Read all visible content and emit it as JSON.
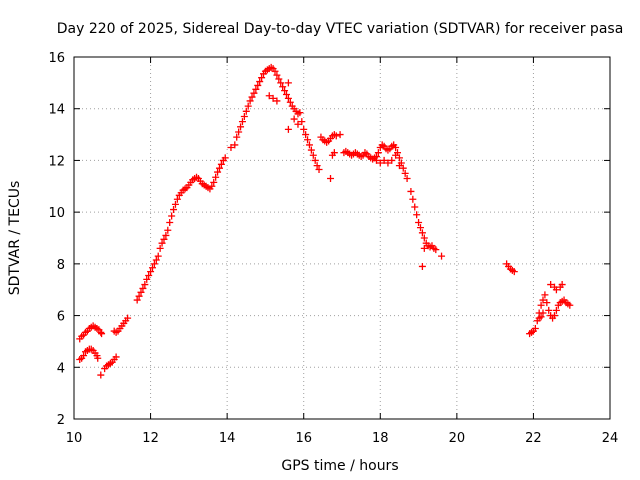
{
  "chart_data": {
    "type": "scatter",
    "title": "Day 220 of 2025, Sidereal Day-to-day VTEC variation (SDTVAR) for receiver pasa",
    "xlabel": "GPS time / hours",
    "ylabel": "SDTVAR / TECUs",
    "xlim": [
      10,
      24
    ],
    "ylim": [
      2,
      16
    ],
    "xticks": [
      10,
      12,
      14,
      16,
      18,
      20,
      22,
      24
    ],
    "yticks": [
      2,
      4,
      6,
      8,
      10,
      12,
      14,
      16
    ],
    "xtick_labels": [
      "10",
      "12",
      "14",
      "16",
      "18",
      "20",
      "22",
      "24"
    ],
    "ytick_labels": [
      "2",
      "4",
      "6",
      "8",
      "10",
      "12",
      "14",
      "16"
    ],
    "grid": true,
    "marker": "+",
    "color": "#ff0000",
    "series": [
      {
        "name": "pasa",
        "points": [
          [
            10.15,
            5.1
          ],
          [
            10.2,
            5.2
          ],
          [
            10.25,
            5.25
          ],
          [
            10.3,
            5.35
          ],
          [
            10.35,
            5.4
          ],
          [
            10.4,
            5.5
          ],
          [
            10.45,
            5.55
          ],
          [
            10.5,
            5.6
          ],
          [
            10.55,
            5.55
          ],
          [
            10.6,
            5.5
          ],
          [
            10.65,
            5.45
          ],
          [
            10.7,
            5.35
          ],
          [
            10.72,
            5.3
          ],
          [
            10.15,
            4.3
          ],
          [
            10.2,
            4.35
          ],
          [
            10.25,
            4.45
          ],
          [
            10.3,
            4.6
          ],
          [
            10.35,
            4.65
          ],
          [
            10.4,
            4.7
          ],
          [
            10.45,
            4.7
          ],
          [
            10.5,
            4.65
          ],
          [
            10.55,
            4.55
          ],
          [
            10.6,
            4.45
          ],
          [
            10.62,
            4.35
          ],
          [
            10.7,
            3.7
          ],
          [
            10.8,
            3.95
          ],
          [
            10.85,
            4.05
          ],
          [
            10.9,
            4.1
          ],
          [
            10.95,
            4.15
          ],
          [
            11.0,
            4.2
          ],
          [
            11.05,
            4.3
          ],
          [
            11.1,
            4.4
          ],
          [
            11.05,
            5.4
          ],
          [
            11.1,
            5.35
          ],
          [
            11.15,
            5.4
          ],
          [
            11.2,
            5.5
          ],
          [
            11.25,
            5.6
          ],
          [
            11.3,
            5.7
          ],
          [
            11.35,
            5.8
          ],
          [
            11.4,
            5.9
          ],
          [
            11.65,
            6.6
          ],
          [
            11.7,
            6.75
          ],
          [
            11.75,
            6.9
          ],
          [
            11.8,
            7.05
          ],
          [
            11.85,
            7.2
          ],
          [
            11.9,
            7.4
          ],
          [
            11.95,
            7.55
          ],
          [
            12.0,
            7.7
          ],
          [
            12.05,
            7.85
          ],
          [
            12.1,
            8.0
          ],
          [
            12.15,
            8.15
          ],
          [
            12.2,
            8.3
          ],
          [
            12.25,
            8.6
          ],
          [
            12.3,
            8.8
          ],
          [
            12.35,
            8.95
          ],
          [
            12.4,
            9.1
          ],
          [
            12.45,
            9.3
          ],
          [
            12.5,
            9.6
          ],
          [
            12.55,
            9.85
          ],
          [
            12.6,
            10.1
          ],
          [
            12.65,
            10.3
          ],
          [
            12.7,
            10.5
          ],
          [
            12.75,
            10.65
          ],
          [
            12.8,
            10.75
          ],
          [
            12.85,
            10.85
          ],
          [
            12.9,
            10.9
          ],
          [
            12.95,
            10.95
          ],
          [
            13.0,
            11.05
          ],
          [
            13.05,
            11.15
          ],
          [
            13.1,
            11.25
          ],
          [
            13.15,
            11.3
          ],
          [
            13.2,
            11.35
          ],
          [
            13.25,
            11.3
          ],
          [
            13.3,
            11.2
          ],
          [
            13.35,
            11.1
          ],
          [
            13.4,
            11.05
          ],
          [
            13.45,
            11.0
          ],
          [
            13.5,
            10.95
          ],
          [
            13.55,
            10.9
          ],
          [
            13.6,
            11.0
          ],
          [
            13.65,
            11.15
          ],
          [
            13.7,
            11.35
          ],
          [
            13.75,
            11.55
          ],
          [
            13.8,
            11.7
          ],
          [
            13.85,
            11.85
          ],
          [
            13.9,
            12.0
          ],
          [
            13.95,
            12.1
          ],
          [
            14.1,
            12.5
          ],
          [
            14.2,
            12.6
          ],
          [
            14.25,
            12.9
          ],
          [
            14.3,
            13.1
          ],
          [
            14.35,
            13.3
          ],
          [
            14.4,
            13.5
          ],
          [
            14.45,
            13.7
          ],
          [
            14.5,
            13.9
          ],
          [
            14.55,
            14.1
          ],
          [
            14.6,
            14.3
          ],
          [
            14.65,
            14.45
          ],
          [
            14.7,
            14.6
          ],
          [
            14.75,
            14.75
          ],
          [
            14.8,
            14.9
          ],
          [
            14.85,
            15.05
          ],
          [
            14.9,
            15.2
          ],
          [
            14.95,
            15.35
          ],
          [
            15.0,
            15.45
          ],
          [
            15.05,
            15.5
          ],
          [
            15.1,
            15.55
          ],
          [
            15.15,
            15.6
          ],
          [
            15.2,
            15.55
          ],
          [
            15.25,
            15.45
          ],
          [
            15.3,
            15.3
          ],
          [
            15.35,
            15.15
          ],
          [
            15.4,
            15.0
          ],
          [
            15.45,
            14.85
          ],
          [
            15.5,
            14.7
          ],
          [
            15.55,
            14.55
          ],
          [
            15.6,
            14.4
          ],
          [
            15.65,
            14.25
          ],
          [
            15.7,
            14.1
          ],
          [
            15.75,
            14.0
          ],
          [
            15.8,
            13.9
          ],
          [
            15.85,
            13.8
          ],
          [
            15.9,
            13.85
          ],
          [
            15.1,
            14.5
          ],
          [
            15.2,
            14.4
          ],
          [
            15.3,
            14.3
          ],
          [
            15.6,
            15.0
          ],
          [
            15.6,
            13.2
          ],
          [
            15.75,
            13.6
          ],
          [
            15.85,
            13.4
          ],
          [
            15.95,
            13.5
          ],
          [
            16.0,
            13.2
          ],
          [
            16.05,
            13.0
          ],
          [
            16.1,
            12.8
          ],
          [
            16.15,
            12.6
          ],
          [
            16.2,
            12.4
          ],
          [
            16.25,
            12.2
          ],
          [
            16.3,
            12.0
          ],
          [
            16.35,
            11.8
          ],
          [
            16.4,
            11.65
          ],
          [
            16.45,
            12.9
          ],
          [
            16.5,
            12.8
          ],
          [
            16.55,
            12.75
          ],
          [
            16.6,
            12.7
          ],
          [
            16.65,
            12.75
          ],
          [
            16.7,
            12.85
          ],
          [
            16.75,
            12.95
          ],
          [
            16.8,
            13.0
          ],
          [
            16.85,
            12.95
          ],
          [
            16.95,
            13.0
          ],
          [
            16.7,
            11.3
          ],
          [
            16.75,
            12.2
          ],
          [
            16.8,
            12.3
          ],
          [
            17.05,
            12.3
          ],
          [
            17.1,
            12.35
          ],
          [
            17.15,
            12.3
          ],
          [
            17.2,
            12.25
          ],
          [
            17.25,
            12.2
          ],
          [
            17.3,
            12.25
          ],
          [
            17.35,
            12.3
          ],
          [
            17.4,
            12.25
          ],
          [
            17.45,
            12.2
          ],
          [
            17.5,
            12.15
          ],
          [
            17.55,
            12.2
          ],
          [
            17.6,
            12.3
          ],
          [
            17.65,
            12.25
          ],
          [
            17.7,
            12.15
          ],
          [
            17.75,
            12.1
          ],
          [
            17.8,
            12.05
          ],
          [
            17.85,
            12.1
          ],
          [
            17.9,
            12.15
          ],
          [
            17.95,
            12.3
          ],
          [
            18.0,
            12.5
          ],
          [
            18.05,
            12.6
          ],
          [
            18.1,
            12.55
          ],
          [
            18.15,
            12.45
          ],
          [
            18.2,
            12.4
          ],
          [
            18.25,
            12.45
          ],
          [
            18.3,
            12.55
          ],
          [
            18.35,
            12.6
          ],
          [
            18.4,
            12.5
          ],
          [
            18.45,
            12.3
          ],
          [
            18.5,
            12.1
          ],
          [
            18.55,
            11.9
          ],
          [
            18.6,
            11.7
          ],
          [
            18.65,
            11.5
          ],
          [
            18.7,
            11.3
          ],
          [
            17.9,
            12.0
          ],
          [
            18.0,
            11.9
          ],
          [
            18.1,
            12.0
          ],
          [
            18.2,
            11.9
          ],
          [
            18.3,
            12.0
          ],
          [
            18.4,
            12.2
          ],
          [
            18.5,
            11.8
          ],
          [
            18.8,
            10.8
          ],
          [
            18.85,
            10.5
          ],
          [
            18.9,
            10.2
          ],
          [
            18.95,
            9.9
          ],
          [
            19.0,
            9.6
          ],
          [
            19.05,
            9.4
          ],
          [
            19.1,
            9.2
          ],
          [
            19.15,
            9.0
          ],
          [
            19.2,
            8.8
          ],
          [
            19.25,
            8.7
          ],
          [
            19.3,
            8.65
          ],
          [
            19.35,
            8.7
          ],
          [
            19.4,
            8.6
          ],
          [
            19.45,
            8.55
          ],
          [
            19.6,
            8.3
          ],
          [
            19.1,
            7.9
          ],
          [
            19.15,
            8.6
          ],
          [
            21.3,
            8.0
          ],
          [
            21.35,
            7.9
          ],
          [
            21.4,
            7.8
          ],
          [
            21.45,
            7.75
          ],
          [
            21.5,
            7.7
          ],
          [
            21.9,
            5.3
          ],
          [
            21.95,
            5.35
          ],
          [
            22.0,
            5.4
          ],
          [
            22.05,
            5.5
          ],
          [
            22.1,
            5.8
          ],
          [
            22.15,
            6.1
          ],
          [
            22.2,
            6.4
          ],
          [
            22.25,
            6.6
          ],
          [
            22.3,
            6.8
          ],
          [
            22.35,
            6.5
          ],
          [
            22.4,
            6.2
          ],
          [
            22.45,
            6.0
          ],
          [
            22.5,
            5.9
          ],
          [
            22.55,
            6.0
          ],
          [
            22.6,
            6.2
          ],
          [
            22.65,
            6.4
          ],
          [
            22.7,
            6.5
          ],
          [
            22.75,
            6.55
          ],
          [
            22.8,
            6.6
          ],
          [
            22.85,
            6.5
          ],
          [
            22.9,
            6.45
          ],
          [
            22.95,
            6.4
          ],
          [
            22.45,
            7.2
          ],
          [
            22.55,
            7.1
          ],
          [
            22.6,
            7.0
          ],
          [
            22.7,
            7.1
          ],
          [
            22.75,
            7.2
          ],
          [
            22.15,
            5.9
          ],
          [
            22.2,
            5.95
          ],
          [
            22.25,
            6.1
          ]
        ]
      }
    ]
  }
}
